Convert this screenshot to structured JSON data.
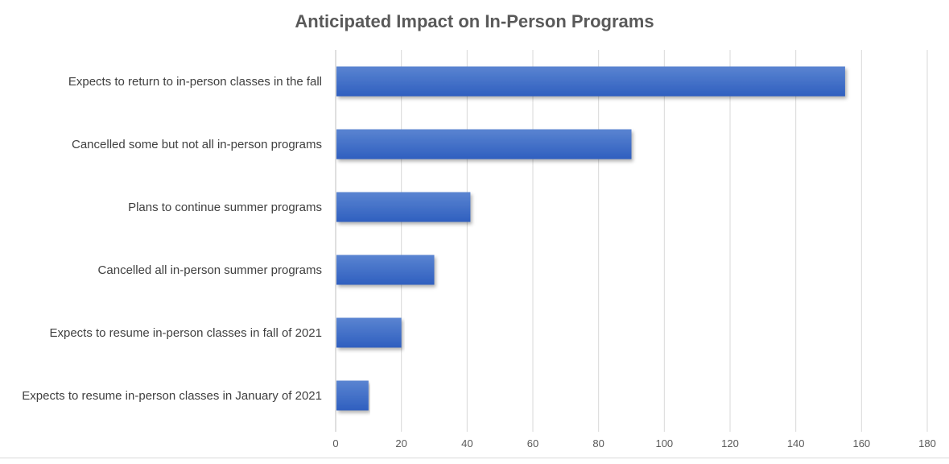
{
  "chart_data": {
    "type": "bar",
    "orientation": "horizontal",
    "title": "Anticipated Impact on In-Person Programs",
    "categories": [
      "Expects to return to in-person classes in the fall",
      "Cancelled some but not all in-person programs",
      "Plans to continue summer programs",
      "Cancelled all in-person summer programs",
      "Expects to resume in-person classes in fall of 2021",
      "Expects to resume in-person classes in January of 2021"
    ],
    "values": [
      155,
      90,
      41,
      30,
      20,
      10
    ],
    "xlim": [
      0,
      180
    ],
    "xticks": [
      "0",
      "20",
      "40",
      "60",
      "80",
      "100",
      "120",
      "140",
      "160",
      "180"
    ],
    "xlabel": "",
    "ylabel": "",
    "grid": true,
    "bar_color": "#4472C4"
  }
}
